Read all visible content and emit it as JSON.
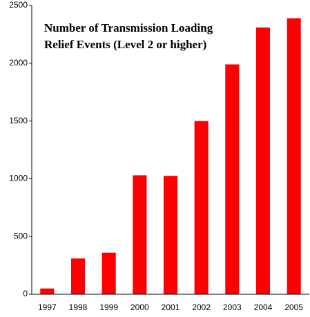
{
  "chart_data": {
    "type": "bar",
    "title": [
      "Number of Transmission Loading",
      "Relief Events (Level 2 or higher)"
    ],
    "categories": [
      "1997",
      "1998",
      "1999",
      "2000",
      "2001",
      "2002",
      "2003",
      "2004",
      "2005"
    ],
    "values": [
      50,
      310,
      360,
      1030,
      1025,
      1500,
      1990,
      2310,
      2390
    ],
    "color": "#ff0000",
    "ylim": [
      0,
      2500
    ],
    "yticks": [
      0,
      500,
      1000,
      1500,
      2000,
      2500
    ],
    "grid": false
  }
}
